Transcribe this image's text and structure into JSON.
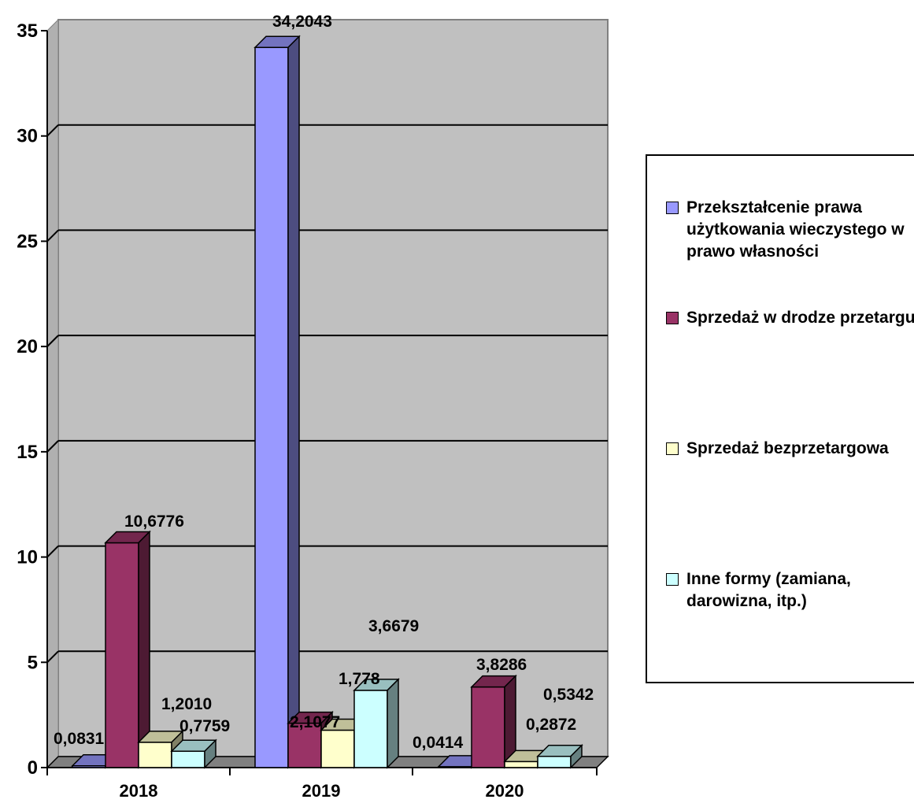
{
  "chart_data": {
    "type": "bar",
    "categories": [
      "2018",
      "2019",
      "2020"
    ],
    "series": [
      {
        "name": "Przekształcenie prawa użytkowania wieczystego w prawo własności",
        "color": "#9999FF",
        "values": [
          0.0831,
          34.2043,
          0.0414
        ],
        "labels": [
          "0,0831",
          "34,2043",
          "0,0414"
        ]
      },
      {
        "name": "Sprzedaż w drodze przetargu",
        "color": "#993366",
        "values": [
          10.6776,
          2.1077,
          3.8286
        ],
        "labels": [
          "10,6776",
          "2,1077",
          "3,8286"
        ]
      },
      {
        "name": "Sprzedaż bezprzetargowa",
        "color": "#FFFFCC",
        "values": [
          1.201,
          1.778,
          0.2872
        ],
        "labels": [
          "1,2010",
          "1,778",
          "0,2872"
        ]
      },
      {
        "name": "Inne formy (zamiana, darowizna, itp.)",
        "color": "#CCFFFF",
        "values": [
          0.7759,
          3.6679,
          0.5342
        ],
        "labels": [
          "0,7759",
          "3,6679",
          "0,5342"
        ]
      }
    ],
    "yticks": [
      "0",
      "5",
      "10",
      "15",
      "20",
      "25",
      "30",
      "35"
    ],
    "ylim": [
      0,
      35
    ],
    "grid": true,
    "legend_position": "right"
  }
}
